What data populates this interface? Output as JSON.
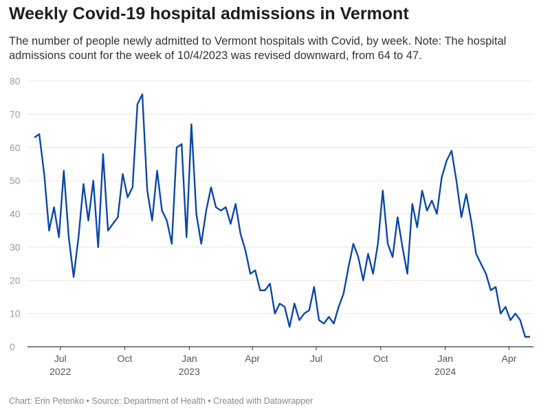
{
  "title": "Weekly Covid-19 hospital admissions in Vermont",
  "subtitle": "The number of people newly admitted to Vermont hospitals with Covid, by week. Note: The hospital admissions count for the week of 10/4/2023 was revised downward, from 64 to 47.",
  "footer": "Chart: Erin Petenko • Source: Department of Health • Created with Datawrapper",
  "chart_data": {
    "type": "line",
    "title": "Weekly Covid-19 hospital admissions in Vermont",
    "xlabel": "",
    "ylabel": "",
    "ylim": [
      0,
      80
    ],
    "yticks": [
      0,
      10,
      20,
      30,
      40,
      50,
      60,
      70,
      80
    ],
    "grid": true,
    "line_color": "#0b47a8",
    "xticks": [
      {
        "date": "2022-07-01",
        "label": "Jul",
        "year": "2022"
      },
      {
        "date": "2022-10-01",
        "label": "Oct",
        "year": ""
      },
      {
        "date": "2023-01-01",
        "label": "Jan",
        "year": "2023"
      },
      {
        "date": "2023-04-01",
        "label": "Apr",
        "year": ""
      },
      {
        "date": "2023-07-01",
        "label": "Jul",
        "year": ""
      },
      {
        "date": "2023-10-01",
        "label": "Oct",
        "year": ""
      },
      {
        "date": "2024-01-01",
        "label": "Jan",
        "year": "2024"
      },
      {
        "date": "2024-04-01",
        "label": "Apr",
        "year": ""
      }
    ],
    "x": [
      "2022-05-25",
      "2022-06-01",
      "2022-06-08",
      "2022-06-15",
      "2022-06-22",
      "2022-06-29",
      "2022-07-06",
      "2022-07-13",
      "2022-07-20",
      "2022-07-27",
      "2022-08-03",
      "2022-08-10",
      "2022-08-17",
      "2022-08-24",
      "2022-08-31",
      "2022-09-07",
      "2022-09-14",
      "2022-09-21",
      "2022-09-28",
      "2022-10-05",
      "2022-10-12",
      "2022-10-19",
      "2022-10-26",
      "2022-11-02",
      "2022-11-09",
      "2022-11-16",
      "2022-11-23",
      "2022-11-30",
      "2022-12-07",
      "2022-12-14",
      "2022-12-21",
      "2022-12-28",
      "2023-01-04",
      "2023-01-11",
      "2023-01-18",
      "2023-01-25",
      "2023-02-01",
      "2023-02-08",
      "2023-02-15",
      "2023-02-22",
      "2023-03-01",
      "2023-03-08",
      "2023-03-15",
      "2023-03-22",
      "2023-03-29",
      "2023-04-05",
      "2023-04-12",
      "2023-04-19",
      "2023-04-26",
      "2023-05-03",
      "2023-05-10",
      "2023-05-17",
      "2023-05-24",
      "2023-05-31",
      "2023-06-07",
      "2023-06-14",
      "2023-06-21",
      "2023-06-28",
      "2023-07-05",
      "2023-07-12",
      "2023-07-19",
      "2023-07-26",
      "2023-08-02",
      "2023-08-09",
      "2023-08-16",
      "2023-08-23",
      "2023-08-30",
      "2023-09-06",
      "2023-09-13",
      "2023-09-20",
      "2023-09-27",
      "2023-10-04",
      "2023-10-11",
      "2023-10-18",
      "2023-10-25",
      "2023-11-01",
      "2023-11-08",
      "2023-11-15",
      "2023-11-22",
      "2023-11-29",
      "2023-12-06",
      "2023-12-13",
      "2023-12-20",
      "2023-12-27",
      "2024-01-03",
      "2024-01-10",
      "2024-01-17",
      "2024-01-24",
      "2024-01-31",
      "2024-02-07",
      "2024-02-14",
      "2024-02-21",
      "2024-02-28",
      "2024-03-06",
      "2024-03-13",
      "2024-03-20",
      "2024-03-27",
      "2024-04-03",
      "2024-04-10",
      "2024-04-17",
      "2024-04-24",
      "2024-05-01"
    ],
    "values": [
      63,
      64,
      52,
      35,
      42,
      33,
      53,
      33,
      21,
      33,
      49,
      38,
      50,
      30,
      58,
      35,
      37,
      39,
      52,
      45,
      48,
      73,
      76,
      47,
      38,
      53,
      41,
      38,
      31,
      60,
      61,
      33,
      67,
      40,
      31,
      41,
      48,
      42,
      41,
      42,
      37,
      43,
      34,
      29,
      22,
      23,
      17,
      17,
      19,
      10,
      13,
      12,
      6,
      13,
      8,
      10,
      11,
      18,
      8,
      7,
      9,
      7,
      12,
      16,
      24,
      31,
      27,
      20,
      28,
      22,
      31,
      47,
      31,
      27,
      39,
      30,
      22,
      43,
      36,
      47,
      41,
      44,
      40,
      51,
      56,
      59,
      50,
      39,
      46,
      38,
      28,
      25,
      22,
      17,
      18,
      10,
      12,
      8,
      10,
      8,
      3,
      3
    ]
  }
}
